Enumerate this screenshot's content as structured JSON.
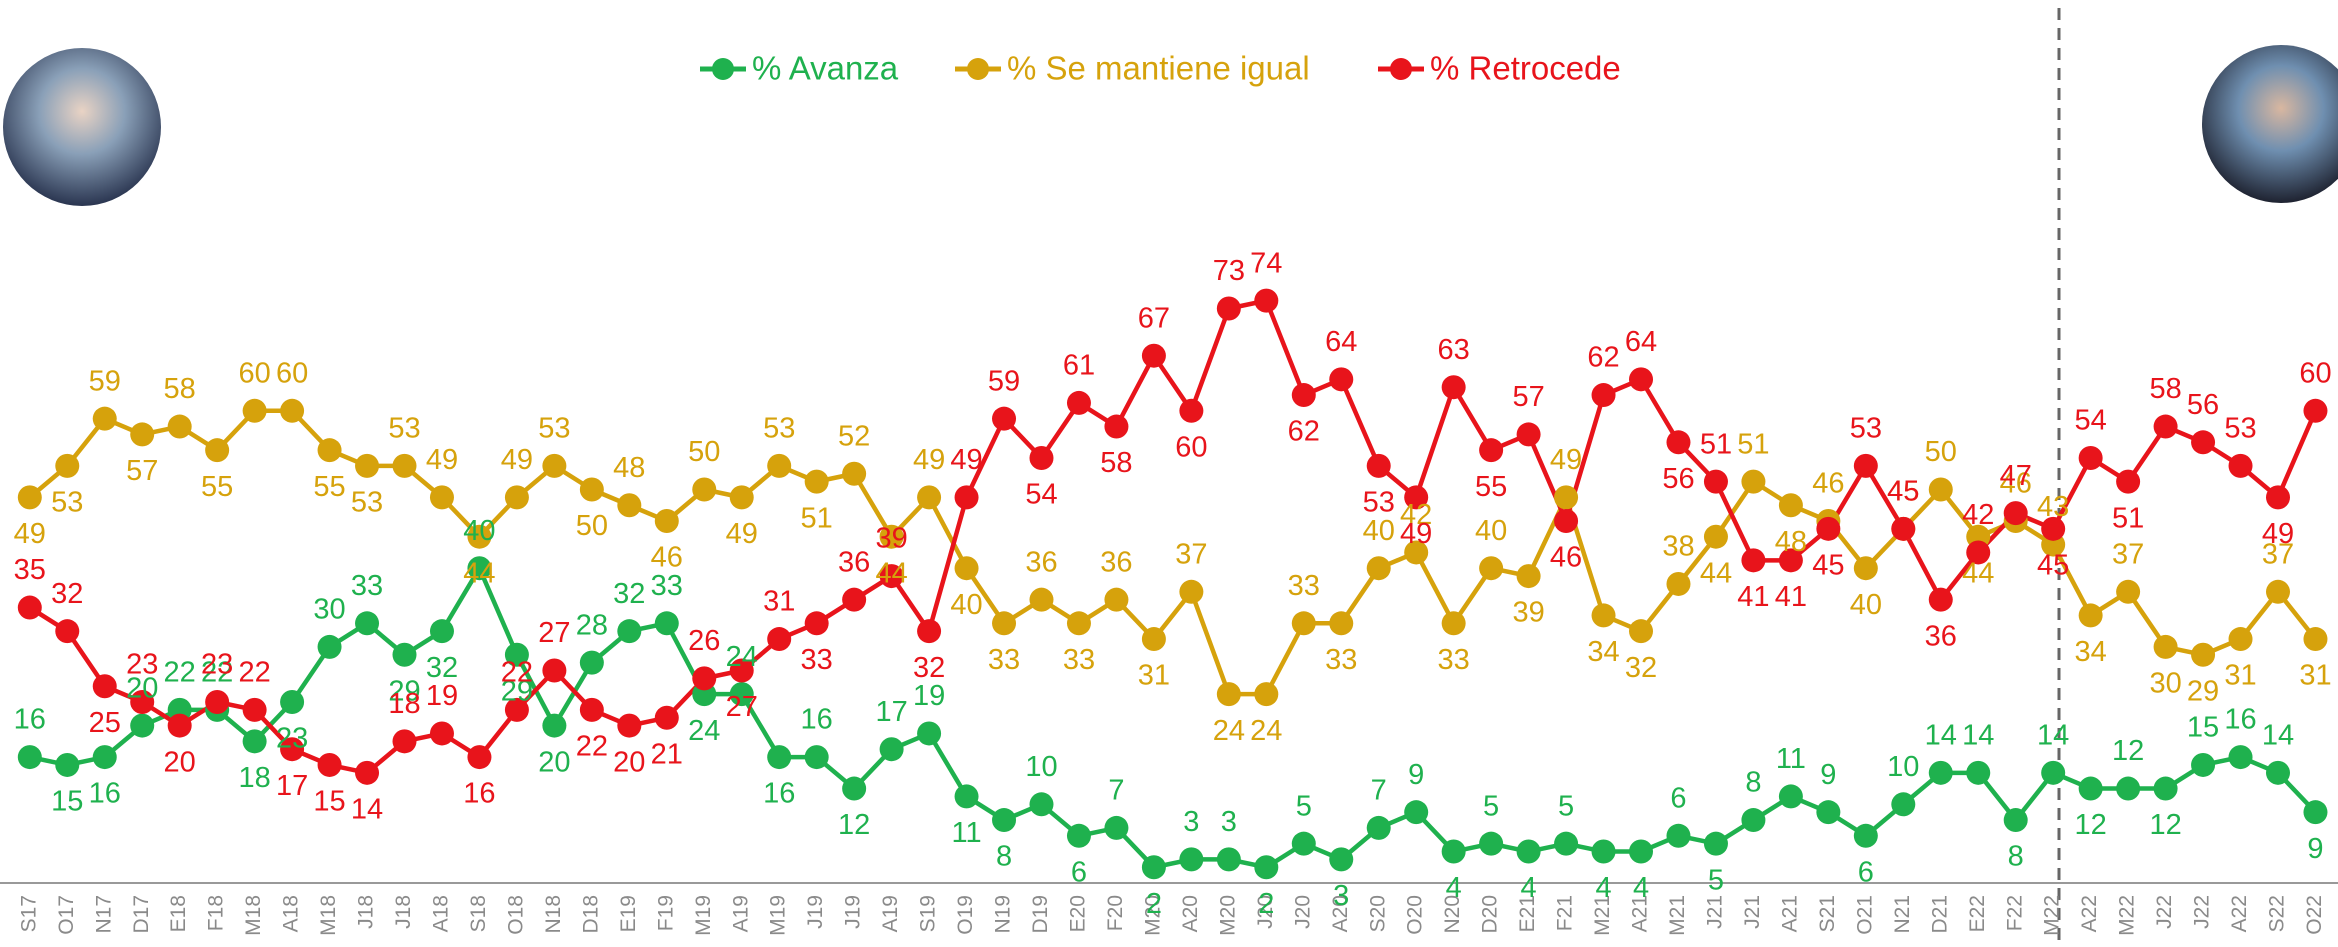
{
  "chart_data": {
    "type": "line",
    "categories": [
      "S17",
      "O17",
      "N17",
      "D17",
      "E18",
      "F18",
      "M18",
      "A18",
      "M18",
      "J18",
      "J18",
      "A18",
      "S18",
      "O18",
      "N18",
      "D18",
      "E19",
      "F19",
      "M19",
      "A19",
      "M19",
      "J19",
      "J19",
      "A19",
      "S19",
      "O19",
      "N19",
      "D19",
      "E20",
      "F20",
      "M20",
      "A20",
      "M20",
      "J20",
      "J20",
      "A20",
      "S20",
      "O20",
      "N20",
      "D20",
      "E21",
      "F21",
      "M21",
      "A21",
      "M21",
      "J21",
      "J21",
      "A21",
      "S21",
      "O21",
      "N21",
      "D21",
      "E22",
      "F22",
      "M22",
      "A22",
      "M22",
      "J22",
      "J22",
      "A22",
      "S22",
      "O22"
    ],
    "series": [
      {
        "name": "% Avanza",
        "color": "#1fb14e",
        "values": [
          16,
          15,
          16,
          20,
          22,
          22,
          18,
          23,
          30,
          33,
          29,
          32,
          40,
          29,
          20,
          28,
          32,
          33,
          24,
          24,
          16,
          16,
          12,
          17,
          19,
          11,
          8,
          10,
          6,
          7,
          2,
          3,
          3,
          2,
          5,
          3,
          7,
          9,
          4,
          5,
          4,
          5,
          4,
          4,
          6,
          5,
          8,
          11,
          9,
          6,
          10,
          14,
          14,
          8,
          14,
          12,
          12,
          12,
          15,
          16,
          14,
          9
        ]
      },
      {
        "name": "% Se mantiene igual",
        "color": "#d6a20c",
        "values": [
          49,
          53,
          59,
          57,
          58,
          55,
          60,
          60,
          55,
          53,
          53,
          49,
          44,
          49,
          53,
          50,
          48,
          46,
          50,
          49,
          53,
          51,
          52,
          44,
          49,
          40,
          33,
          36,
          33,
          36,
          31,
          37,
          24,
          24,
          33,
          33,
          40,
          42,
          33,
          40,
          39,
          49,
          34,
          32,
          38,
          44,
          51,
          48,
          46,
          40,
          45,
          50,
          44,
          46,
          43,
          34,
          37,
          30,
          29,
          31,
          37,
          31
        ]
      },
      {
        "name": "% Retrocede",
        "color": "#e8141b",
        "values": [
          35,
          32,
          25,
          23,
          20,
          23,
          22,
          17,
          15,
          14,
          18,
          19,
          16,
          22,
          27,
          22,
          20,
          21,
          26,
          27,
          31,
          33,
          36,
          39,
          32,
          49,
          59,
          54,
          61,
          58,
          67,
          60,
          73,
          74,
          62,
          64,
          53,
          49,
          63,
          55,
          57,
          46,
          62,
          64,
          56,
          51,
          41,
          41,
          45,
          53,
          45,
          36,
          42,
          47,
          45,
          54,
          51,
          58,
          56,
          53,
          49,
          60
        ]
      }
    ],
    "ylim": [
      0,
      100
    ]
  }
}
